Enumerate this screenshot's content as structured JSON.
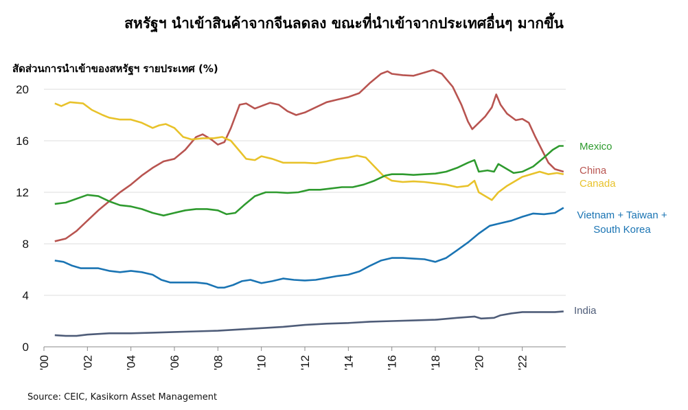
{
  "chart_data": {
    "type": "line",
    "title": "สหรัฐฯ นำเข้าสินค้าจากจีนลดลง ขณะที่นำเข้าจากประเทศอื่นๆ มากขึ้น",
    "ylabel": "สัดส่วนการนำเข้าของสหรัฐฯ รายประเทศ (%)",
    "source": "Source: CEIC, Kasikorn Asset Management",
    "xlim": [
      2000,
      2024
    ],
    "ylim": [
      0,
      20
    ],
    "x_ticks": [
      "'00",
      "'02",
      "'04",
      "'06",
      "'08",
      "'10",
      "'12",
      "'14",
      "'16",
      "'18",
      "'20",
      "'22"
    ],
    "y_ticks": [
      "0",
      "4",
      "8",
      "12",
      "16",
      "20"
    ],
    "grid": true,
    "legend": "labels at right end of lines",
    "series": [
      {
        "name": "China",
        "color": "#b85450",
        "points": [
          [
            2000.5,
            8.2
          ],
          [
            2001.0,
            8.4
          ],
          [
            2001.5,
            9.0
          ],
          [
            2002.0,
            9.8
          ],
          [
            2002.5,
            10.6
          ],
          [
            2003.0,
            11.3
          ],
          [
            2003.5,
            12.0
          ],
          [
            2004.0,
            12.6
          ],
          [
            2004.5,
            13.3
          ],
          [
            2005.0,
            13.9
          ],
          [
            2005.5,
            14.4
          ],
          [
            2006.0,
            14.6
          ],
          [
            2006.5,
            15.3
          ],
          [
            2007.0,
            16.3
          ],
          [
            2007.3,
            16.5
          ],
          [
            2007.7,
            16.1
          ],
          [
            2008.0,
            15.7
          ],
          [
            2008.3,
            15.9
          ],
          [
            2008.6,
            17.0
          ],
          [
            2009.0,
            18.8
          ],
          [
            2009.3,
            18.9
          ],
          [
            2009.7,
            18.5
          ],
          [
            2010.0,
            18.7
          ],
          [
            2010.4,
            18.95
          ],
          [
            2010.8,
            18.8
          ],
          [
            2011.2,
            18.3
          ],
          [
            2011.6,
            18.0
          ],
          [
            2012.0,
            18.2
          ],
          [
            2012.5,
            18.6
          ],
          [
            2013.0,
            19.0
          ],
          [
            2013.5,
            19.2
          ],
          [
            2014.0,
            19.4
          ],
          [
            2014.5,
            19.7
          ],
          [
            2015.0,
            20.5
          ],
          [
            2015.5,
            21.2
          ],
          [
            2015.8,
            21.4
          ],
          [
            2016.0,
            21.2
          ],
          [
            2016.5,
            21.1
          ],
          [
            2017.0,
            21.05
          ],
          [
            2017.5,
            21.3
          ],
          [
            2017.9,
            21.5
          ],
          [
            2018.3,
            21.2
          ],
          [
            2018.8,
            20.2
          ],
          [
            2019.2,
            18.8
          ],
          [
            2019.5,
            17.5
          ],
          [
            2019.7,
            16.9
          ],
          [
            2020.0,
            17.4
          ],
          [
            2020.3,
            17.9
          ],
          [
            2020.6,
            18.6
          ],
          [
            2020.8,
            19.6
          ],
          [
            2021.0,
            18.8
          ],
          [
            2021.3,
            18.1
          ],
          [
            2021.7,
            17.6
          ],
          [
            2022.0,
            17.7
          ],
          [
            2022.3,
            17.4
          ],
          [
            2022.6,
            16.3
          ],
          [
            2022.9,
            15.3
          ],
          [
            2023.2,
            14.3
          ],
          [
            2023.5,
            13.8
          ],
          [
            2023.9,
            13.6
          ]
        ]
      },
      {
        "name": "Canada",
        "color": "#e8c22a",
        "points": [
          [
            2000.5,
            18.9
          ],
          [
            2000.8,
            18.7
          ],
          [
            2001.2,
            19.0
          ],
          [
            2001.8,
            18.9
          ],
          [
            2002.2,
            18.4
          ],
          [
            2002.7,
            18.0
          ],
          [
            2003.0,
            17.8
          ],
          [
            2003.5,
            17.65
          ],
          [
            2004.0,
            17.65
          ],
          [
            2004.5,
            17.4
          ],
          [
            2005.0,
            17.0
          ],
          [
            2005.3,
            17.2
          ],
          [
            2005.6,
            17.3
          ],
          [
            2006.0,
            17.0
          ],
          [
            2006.4,
            16.3
          ],
          [
            2006.8,
            16.1
          ],
          [
            2007.3,
            16.2
          ],
          [
            2007.8,
            16.2
          ],
          [
            2008.2,
            16.3
          ],
          [
            2008.6,
            16.0
          ],
          [
            2009.0,
            15.2
          ],
          [
            2009.3,
            14.6
          ],
          [
            2009.7,
            14.5
          ],
          [
            2010.0,
            14.8
          ],
          [
            2010.5,
            14.6
          ],
          [
            2011.0,
            14.3
          ],
          [
            2011.5,
            14.3
          ],
          [
            2012.0,
            14.3
          ],
          [
            2012.5,
            14.25
          ],
          [
            2013.0,
            14.4
          ],
          [
            2013.5,
            14.6
          ],
          [
            2014.0,
            14.7
          ],
          [
            2014.4,
            14.85
          ],
          [
            2014.8,
            14.7
          ],
          [
            2015.2,
            14.0
          ],
          [
            2015.6,
            13.3
          ],
          [
            2016.0,
            12.9
          ],
          [
            2016.5,
            12.8
          ],
          [
            2017.0,
            12.85
          ],
          [
            2017.5,
            12.8
          ],
          [
            2018.0,
            12.7
          ],
          [
            2018.5,
            12.6
          ],
          [
            2019.0,
            12.4
          ],
          [
            2019.5,
            12.5
          ],
          [
            2019.8,
            12.9
          ],
          [
            2020.0,
            12.0
          ],
          [
            2020.3,
            11.7
          ],
          [
            2020.6,
            11.4
          ],
          [
            2020.9,
            12.0
          ],
          [
            2021.3,
            12.5
          ],
          [
            2021.7,
            12.9
          ],
          [
            2022.0,
            13.2
          ],
          [
            2022.4,
            13.4
          ],
          [
            2022.8,
            13.6
          ],
          [
            2023.2,
            13.4
          ],
          [
            2023.6,
            13.5
          ],
          [
            2023.9,
            13.4
          ]
        ]
      },
      {
        "name": "Mexico",
        "color": "#2e9a2e",
        "points": [
          [
            2000.5,
            11.1
          ],
          [
            2001.0,
            11.2
          ],
          [
            2001.5,
            11.5
          ],
          [
            2002.0,
            11.8
          ],
          [
            2002.5,
            11.7
          ],
          [
            2003.0,
            11.3
          ],
          [
            2003.5,
            11.0
          ],
          [
            2004.0,
            10.9
          ],
          [
            2004.5,
            10.7
          ],
          [
            2005.0,
            10.4
          ],
          [
            2005.5,
            10.2
          ],
          [
            2006.0,
            10.4
          ],
          [
            2006.5,
            10.6
          ],
          [
            2007.0,
            10.7
          ],
          [
            2007.5,
            10.7
          ],
          [
            2008.0,
            10.6
          ],
          [
            2008.4,
            10.3
          ],
          [
            2008.8,
            10.4
          ],
          [
            2009.2,
            11.0
          ],
          [
            2009.7,
            11.7
          ],
          [
            2010.2,
            12.0
          ],
          [
            2010.7,
            12.0
          ],
          [
            2011.2,
            11.95
          ],
          [
            2011.7,
            12.0
          ],
          [
            2012.2,
            12.2
          ],
          [
            2012.7,
            12.2
          ],
          [
            2013.2,
            12.3
          ],
          [
            2013.7,
            12.4
          ],
          [
            2014.2,
            12.4
          ],
          [
            2014.7,
            12.6
          ],
          [
            2015.2,
            12.9
          ],
          [
            2015.7,
            13.3
          ],
          [
            2016.0,
            13.4
          ],
          [
            2016.5,
            13.4
          ],
          [
            2017.0,
            13.35
          ],
          [
            2017.5,
            13.4
          ],
          [
            2018.0,
            13.45
          ],
          [
            2018.5,
            13.6
          ],
          [
            2019.0,
            13.9
          ],
          [
            2019.5,
            14.3
          ],
          [
            2019.8,
            14.5
          ],
          [
            2020.0,
            13.6
          ],
          [
            2020.4,
            13.7
          ],
          [
            2020.7,
            13.6
          ],
          [
            2020.9,
            14.2
          ],
          [
            2021.2,
            13.9
          ],
          [
            2021.6,
            13.5
          ],
          [
            2022.0,
            13.6
          ],
          [
            2022.5,
            14.0
          ],
          [
            2023.0,
            14.7
          ],
          [
            2023.4,
            15.3
          ],
          [
            2023.7,
            15.6
          ],
          [
            2023.9,
            15.6
          ]
        ]
      },
      {
        "name": "Vietnam + Taiwan + South Korea",
        "color": "#1a74b3",
        "points": [
          [
            2000.5,
            6.7
          ],
          [
            2000.9,
            6.6
          ],
          [
            2001.3,
            6.3
          ],
          [
            2001.7,
            6.1
          ],
          [
            2002.5,
            6.1
          ],
          [
            2003.0,
            5.9
          ],
          [
            2003.5,
            5.8
          ],
          [
            2004.0,
            5.9
          ],
          [
            2004.5,
            5.8
          ],
          [
            2005.0,
            5.6
          ],
          [
            2005.4,
            5.2
          ],
          [
            2005.8,
            5.0
          ],
          [
            2006.5,
            5.0
          ],
          [
            2007.0,
            5.0
          ],
          [
            2007.5,
            4.9
          ],
          [
            2008.0,
            4.6
          ],
          [
            2008.3,
            4.6
          ],
          [
            2008.7,
            4.8
          ],
          [
            2009.1,
            5.1
          ],
          [
            2009.5,
            5.2
          ],
          [
            2010.0,
            4.95
          ],
          [
            2010.5,
            5.1
          ],
          [
            2011.0,
            5.3
          ],
          [
            2011.5,
            5.2
          ],
          [
            2012.0,
            5.15
          ],
          [
            2012.5,
            5.2
          ],
          [
            2013.0,
            5.35
          ],
          [
            2013.5,
            5.5
          ],
          [
            2014.0,
            5.6
          ],
          [
            2014.5,
            5.85
          ],
          [
            2015.0,
            6.3
          ],
          [
            2015.5,
            6.7
          ],
          [
            2016.0,
            6.9
          ],
          [
            2016.5,
            6.9
          ],
          [
            2017.0,
            6.85
          ],
          [
            2017.5,
            6.8
          ],
          [
            2018.0,
            6.6
          ],
          [
            2018.5,
            6.9
          ],
          [
            2019.0,
            7.5
          ],
          [
            2019.5,
            8.1
          ],
          [
            2020.0,
            8.8
          ],
          [
            2020.5,
            9.4
          ],
          [
            2021.0,
            9.6
          ],
          [
            2021.5,
            9.8
          ],
          [
            2022.0,
            10.1
          ],
          [
            2022.5,
            10.35
          ],
          [
            2023.0,
            10.3
          ],
          [
            2023.5,
            10.4
          ],
          [
            2023.9,
            10.8
          ]
        ]
      },
      {
        "name": "India",
        "color": "#4e5c78",
        "points": [
          [
            2000.5,
            0.9
          ],
          [
            2001.0,
            0.85
          ],
          [
            2001.5,
            0.85
          ],
          [
            2002.0,
            0.95
          ],
          [
            2003.0,
            1.05
          ],
          [
            2004.0,
            1.05
          ],
          [
            2005.0,
            1.1
          ],
          [
            2006.0,
            1.15
          ],
          [
            2007.0,
            1.2
          ],
          [
            2008.0,
            1.25
          ],
          [
            2009.0,
            1.35
          ],
          [
            2010.0,
            1.45
          ],
          [
            2011.0,
            1.55
          ],
          [
            2012.0,
            1.7
          ],
          [
            2013.0,
            1.8
          ],
          [
            2014.0,
            1.85
          ],
          [
            2015.0,
            1.95
          ],
          [
            2016.0,
            2.0
          ],
          [
            2017.0,
            2.05
          ],
          [
            2018.0,
            2.1
          ],
          [
            2019.0,
            2.25
          ],
          [
            2019.8,
            2.35
          ],
          [
            2020.1,
            2.2
          ],
          [
            2020.7,
            2.25
          ],
          [
            2021.0,
            2.45
          ],
          [
            2021.5,
            2.6
          ],
          [
            2022.0,
            2.7
          ],
          [
            2022.5,
            2.7
          ],
          [
            2023.0,
            2.7
          ],
          [
            2023.5,
            2.7
          ],
          [
            2023.9,
            2.75
          ]
        ]
      }
    ]
  }
}
